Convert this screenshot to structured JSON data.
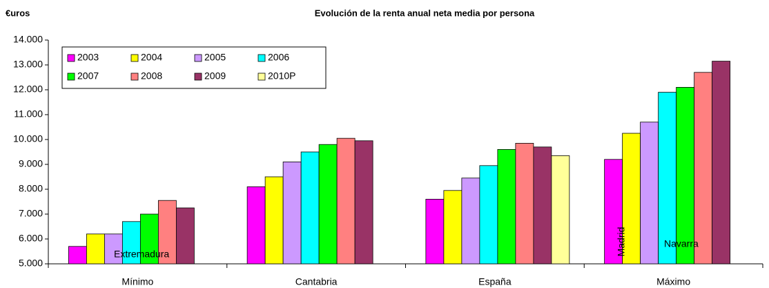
{
  "chart_data": {
    "type": "bar",
    "title": "Evolución de la renta anual neta media por persona",
    "y_label": "€uros",
    "categories": [
      "Mínimo",
      "Cantabria",
      "España",
      "Máximo"
    ],
    "series": [
      {
        "name": "2003",
        "color": "#ff00ff",
        "values": [
          5700,
          8100,
          7600,
          9200
        ]
      },
      {
        "name": "2004",
        "color": "#ffff00",
        "values": [
          6200,
          8500,
          7950,
          10250
        ]
      },
      {
        "name": "2005",
        "color": "#cc99ff",
        "values": [
          6200,
          9100,
          8450,
          10700
        ]
      },
      {
        "name": "2006",
        "color": "#00ffff",
        "values": [
          6700,
          9500,
          8950,
          11900
        ]
      },
      {
        "name": "2007",
        "color": "#00ff00",
        "values": [
          7000,
          9800,
          9600,
          12100
        ]
      },
      {
        "name": "2008",
        "color": "#ff8080",
        "values": [
          7550,
          10050,
          9850,
          12700
        ]
      },
      {
        "name": "2009",
        "color": "#993366",
        "values": [
          7250,
          9950,
          9700,
          13150
        ]
      },
      {
        "name": "2010P",
        "color": "#ffff99",
        "values": [
          null,
          null,
          9350,
          null
        ]
      }
    ],
    "ylim": [
      5000,
      14000
    ],
    "yticks": [
      {
        "value": 5000,
        "label": "5.000"
      },
      {
        "value": 6000,
        "label": "6.000"
      },
      {
        "value": 7000,
        "label": "7.000"
      },
      {
        "value": 8000,
        "label": "8.000"
      },
      {
        "value": 9000,
        "label": "9.000"
      },
      {
        "value": 10000,
        "label": "10.000"
      },
      {
        "value": 11000,
        "label": "11.000"
      },
      {
        "value": 12000,
        "label": "12.000"
      },
      {
        "value": 13000,
        "label": "13.000"
      },
      {
        "value": 14000,
        "label": "14.000"
      }
    ],
    "annotations": [
      "Extremadura",
      "Madrid",
      "Navarra"
    ],
    "legend": "top-left",
    "grid": false
  }
}
